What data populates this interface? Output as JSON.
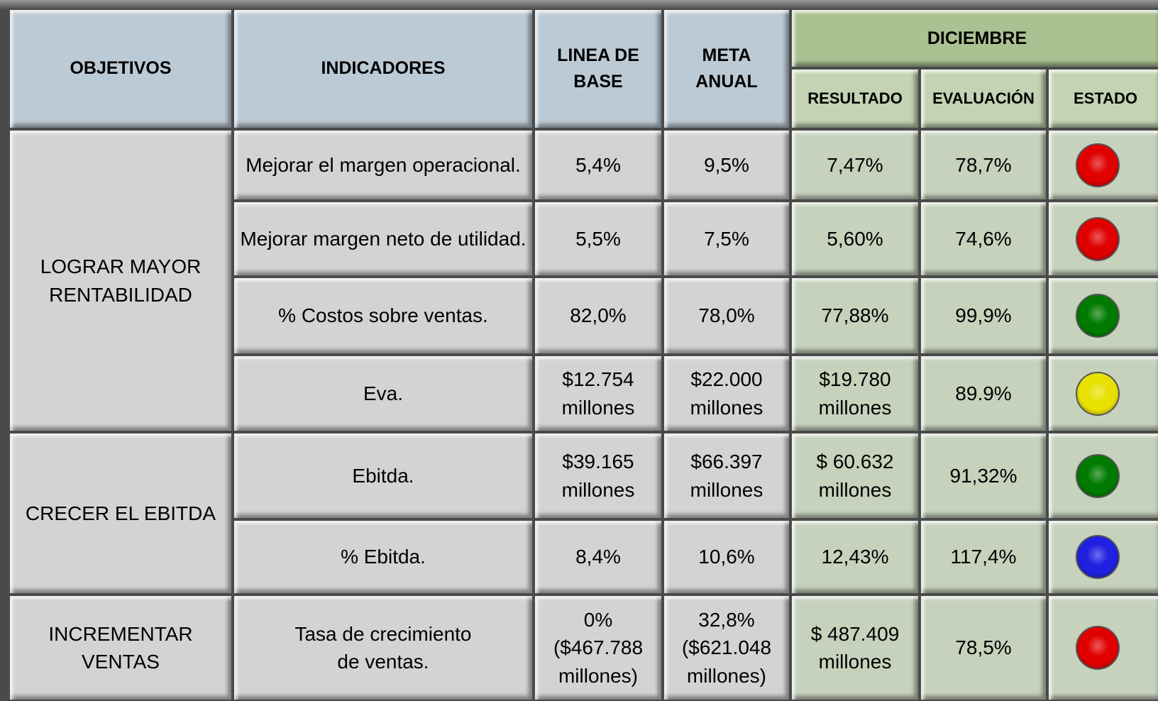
{
  "header": {
    "objetivos": "OBJETIVOS",
    "indicadores": "INDICADORES",
    "linea_base": "LINEA DE BASE",
    "meta": "META ANUAL",
    "periodo": "DICIEMBRE",
    "resultado": "RESULTADO",
    "evaluacion": "EVALUACIÓN",
    "estado": "ESTADO"
  },
  "groups": [
    {
      "objective": "LOGRAR MAYOR RENTABILIDAD",
      "rows": [
        {
          "indicator": "Mejorar el margen operacional.",
          "base": "5,4%",
          "meta": "9,5%",
          "result": "7,47%",
          "evaluation": "78,7%",
          "status_color": "#e00000"
        },
        {
          "indicator": "Mejorar margen neto de utilidad.",
          "base": "5,5%",
          "meta": "7,5%",
          "result": "5,60%",
          "evaluation": "74,6%",
          "status_color": "#e00000"
        },
        {
          "indicator": "% Costos sobre ventas.",
          "base": "82,0%",
          "meta": "78,0%",
          "result": "77,88%",
          "evaluation": "99,9%",
          "status_color": "#007a00"
        },
        {
          "indicator": "Eva.",
          "base": "$12.754\nmillones",
          "meta": "$22.000\nmillones",
          "result": "$19.780\nmillones",
          "evaluation": "89.9%",
          "status_color": "#e8e000"
        }
      ]
    },
    {
      "objective": "CRECER EL EBITDA",
      "rows": [
        {
          "indicator": "Ebitda.",
          "base": "$39.165\nmillones",
          "meta": "$66.397\nmillones",
          "result": "$ 60.632\nmillones",
          "evaluation": "91,32%",
          "status_color": "#007a00"
        },
        {
          "indicator": "% Ebitda.",
          "base": "8,4%",
          "meta": "10,6%",
          "result": "12,43%",
          "evaluation": "117,4%",
          "status_color": "#2020e0"
        }
      ]
    },
    {
      "objective": "INCREMENTAR VENTAS",
      "rows": [
        {
          "indicator": "Tasa de crecimiento\nde ventas.",
          "base": "0%\n($467.788\nmillones)",
          "meta": "32,8%\n($621.048\nmillones)",
          "result": "$ 487.409\nmillones",
          "evaluation": "78,5%",
          "status_color": "#e00000"
        }
      ]
    }
  ]
}
